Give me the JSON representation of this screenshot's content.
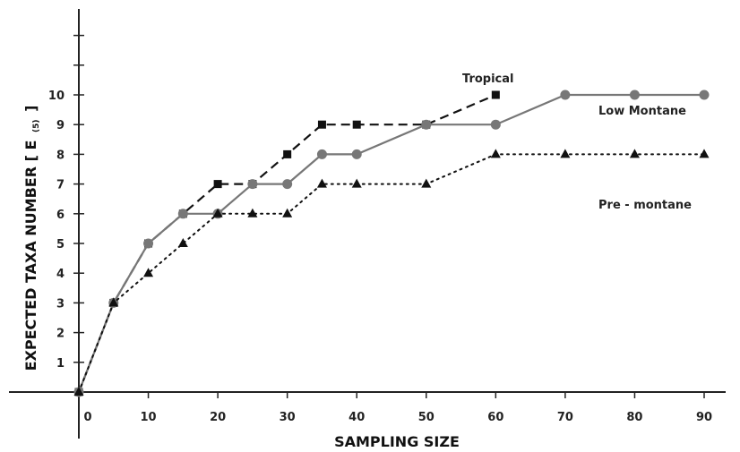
{
  "chart_data": {
    "type": "line",
    "xlabel": "SAMPLING SIZE",
    "ylabel_main": "EXPECTED TAXA NUMBER [ E",
    "ylabel_sub": "(5)",
    "ylabel_close": "]",
    "xlim": [
      0,
      90
    ],
    "ylim": [
      0,
      12
    ],
    "x_ticks": [
      0,
      10,
      20,
      30,
      40,
      50,
      60,
      70,
      80,
      90
    ],
    "y_ticks": [
      1,
      2,
      3,
      4,
      5,
      6,
      7,
      8,
      9,
      10
    ],
    "series": [
      {
        "name": "Tropical",
        "marker": "square",
        "line_style": "dashed",
        "color": "#111111",
        "x": [
          0,
          5,
          10,
          15,
          20,
          25,
          30,
          35,
          40,
          50,
          60
        ],
        "y": [
          0,
          3,
          5,
          6,
          7,
          7,
          8,
          9,
          9,
          9,
          10
        ]
      },
      {
        "name": "Low Montane",
        "marker": "circle",
        "line_style": "solid",
        "color": "#777777",
        "x": [
          0,
          5,
          10,
          15,
          20,
          25,
          30,
          35,
          40,
          50,
          60,
          70,
          80,
          90
        ],
        "y": [
          0,
          3,
          5,
          6,
          6,
          7,
          7,
          8,
          8,
          9,
          9,
          10,
          10,
          10
        ]
      },
      {
        "name": "Pre - montane",
        "marker": "triangle",
        "line_style": "dotted",
        "color": "#111111",
        "x": [
          0,
          5,
          10,
          15,
          20,
          25,
          30,
          35,
          40,
          50,
          60,
          70,
          80,
          90
        ],
        "y": [
          0,
          3,
          4,
          5,
          6,
          6,
          6,
          7,
          7,
          7,
          8,
          8,
          8,
          8
        ]
      }
    ],
    "grid": false,
    "legend": "inline labels"
  }
}
